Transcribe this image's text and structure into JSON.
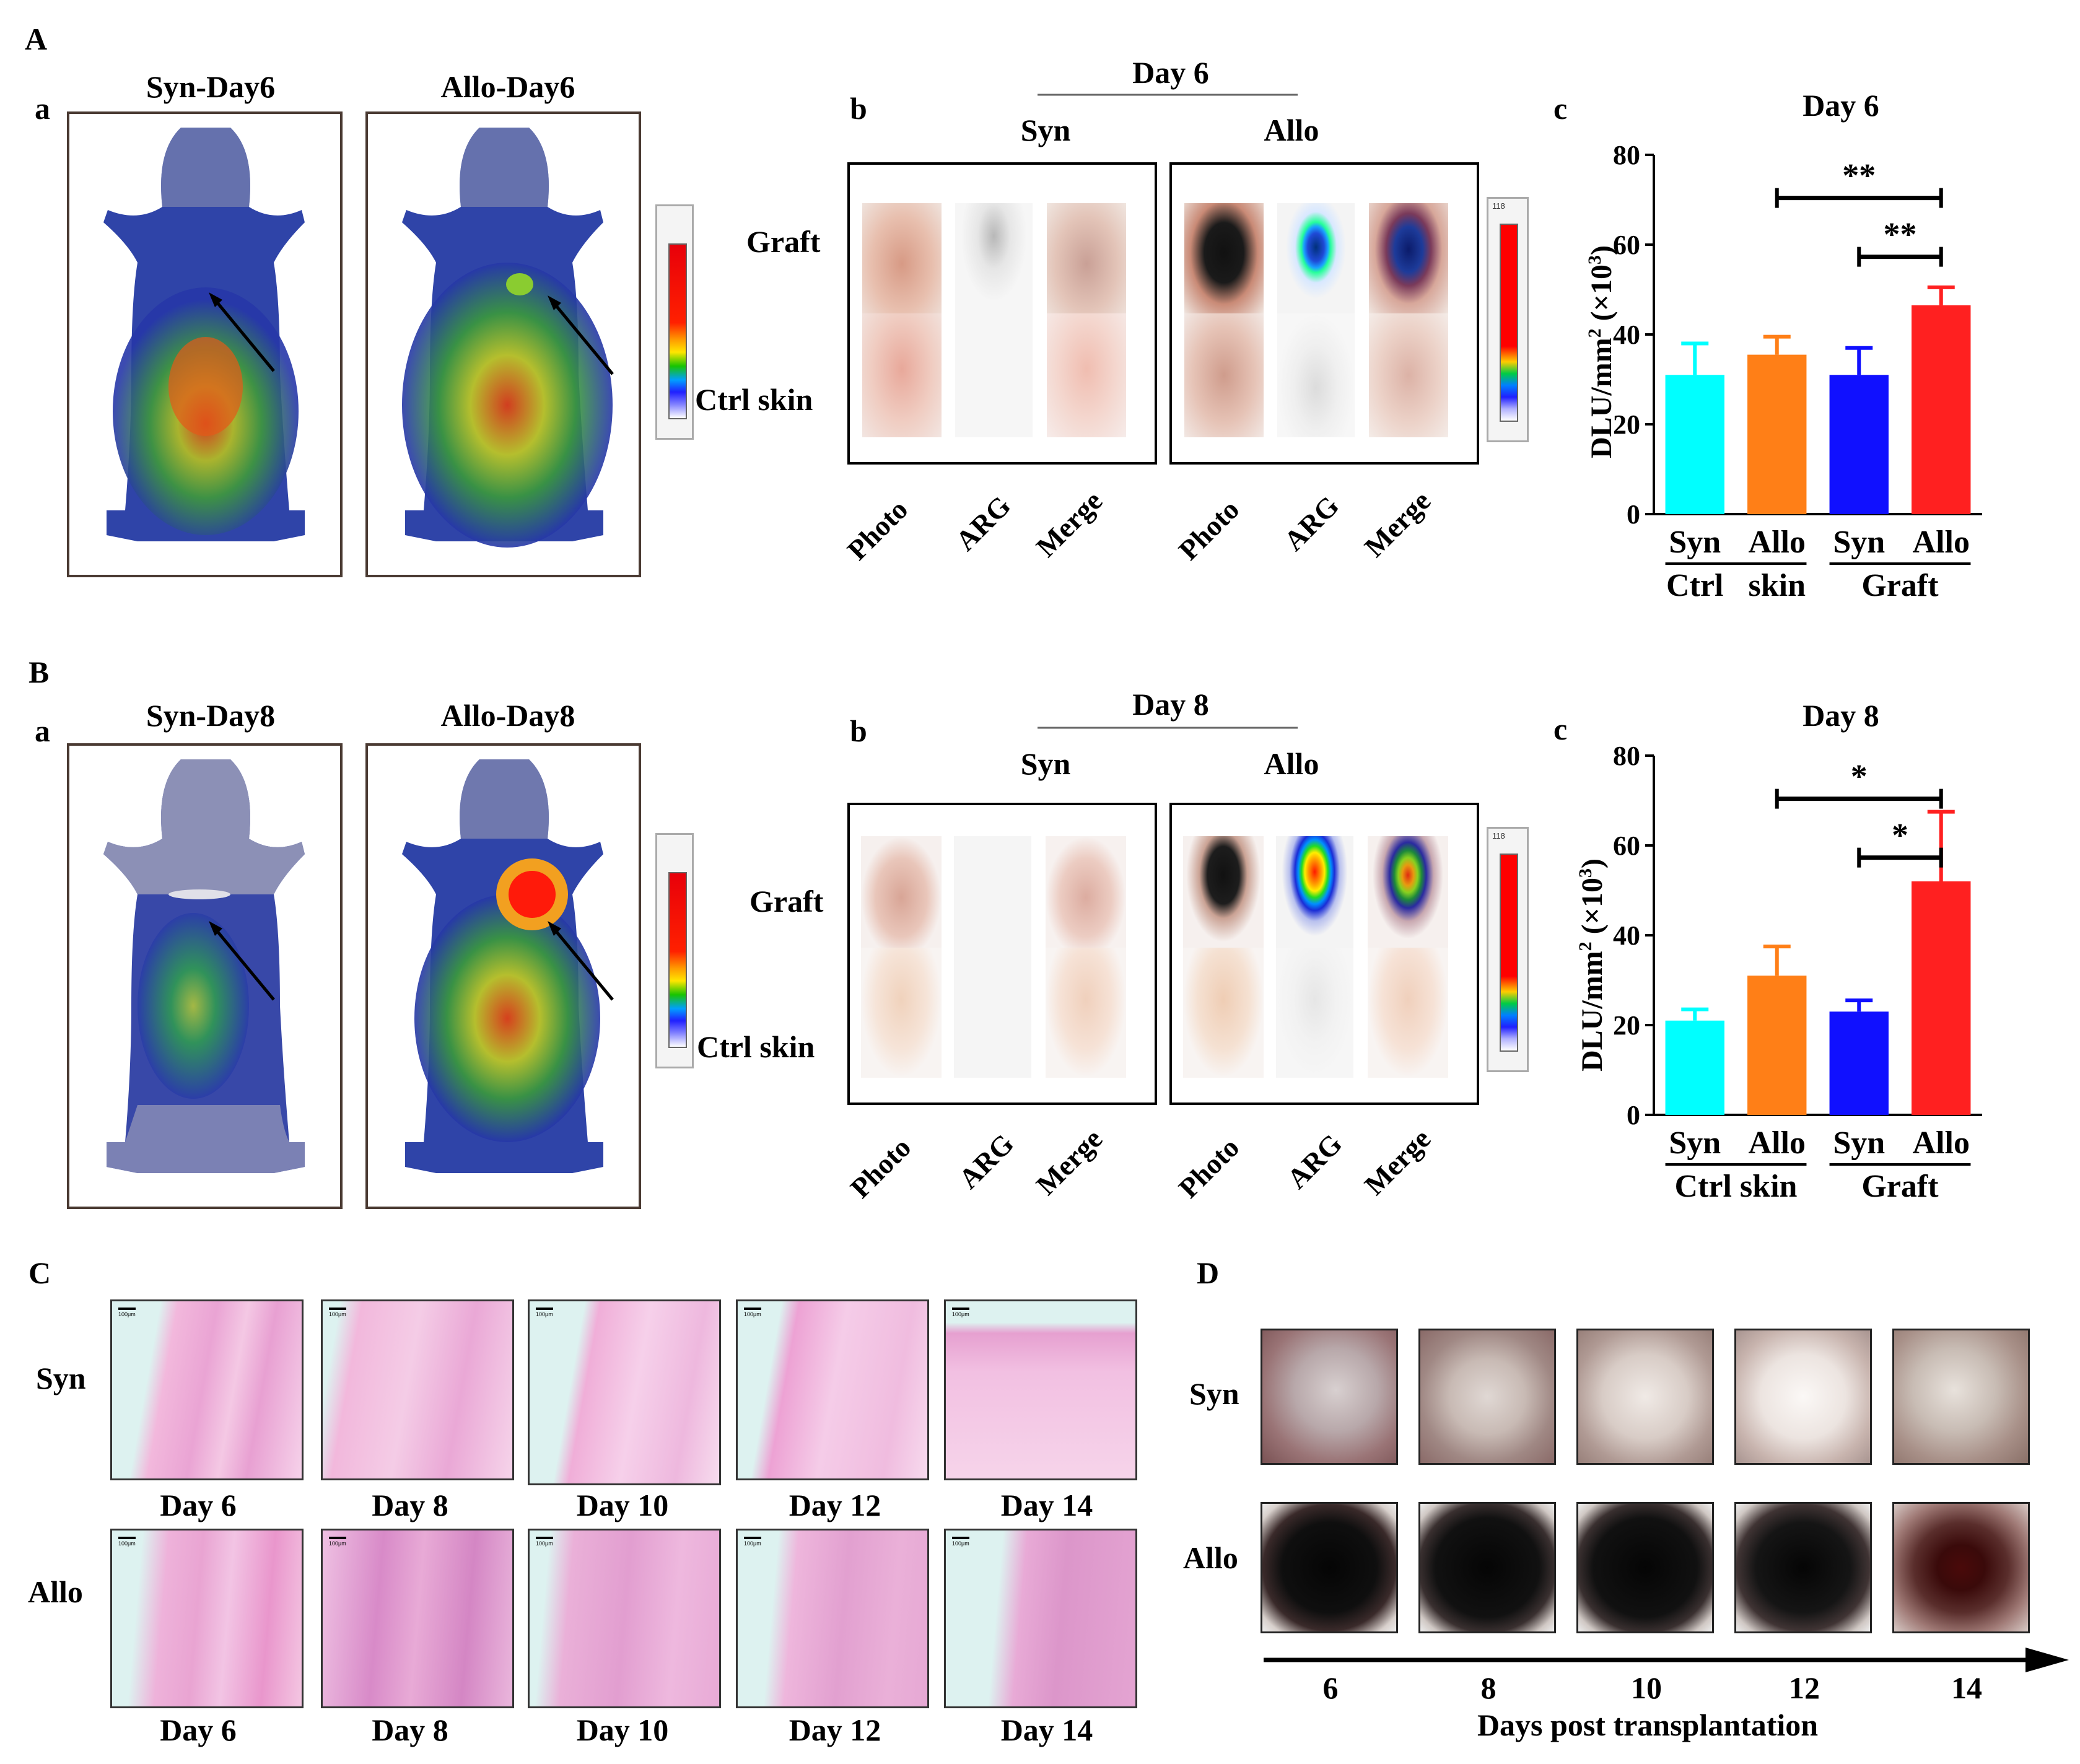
{
  "panel_letters": {
    "A": "A",
    "B": "B",
    "C": "C",
    "D": "D"
  },
  "sub_letters": {
    "a": "a",
    "b": "b",
    "c": "c"
  },
  "A": {
    "syn_title": "Syn-Day6",
    "allo_title": "Allo-Day6",
    "arg_day": "Day 6",
    "syn_label": "Syn",
    "allo_label": "Allo",
    "row_graft": "Graft",
    "row_ctrl": "Ctrl skin",
    "colorbar_max": "118"
  },
  "B": {
    "syn_title": "Syn-Day8",
    "allo_title": "Allo-Day8",
    "arg_day": "Day 8",
    "syn_label": "Syn",
    "allo_label": "Allo",
    "row_graft": "Graft",
    "row_ctrl": "Ctrl skin",
    "colorbar_max": "118"
  },
  "col_labels": [
    "Photo",
    "ARG",
    "Merge",
    "Photo",
    "ARG",
    "Merge"
  ],
  "chart_data": [
    {
      "type": "bar",
      "title": "Day 6",
      "ylabel": "DLU/mm² (×10³)",
      "ylabel_main": "DLU/mm",
      "ylabel_sup": "2",
      "ylabel_unit": "(×10",
      "ylabel_unit_sup": "3",
      "ylabel_close": ")",
      "ylim": [
        0,
        80
      ],
      "yticks": [
        "0",
        "20",
        "40",
        "60",
        "80"
      ],
      "categories": [
        "Syn",
        "Allo",
        "Syn",
        "Allo"
      ],
      "groups": [
        "Ctrl",
        "skin",
        "Graft"
      ],
      "values": [
        31,
        35.5,
        31,
        46.5
      ],
      "errors": [
        7,
        4,
        6,
        4
      ],
      "colors": [
        "#00ffff",
        "#ff7f17",
        "#1010ff",
        "#ff2020"
      ],
      "significance": [
        "**",
        "**"
      ]
    },
    {
      "type": "bar",
      "title": "Day 8",
      "ylabel": "DLU/mm² (×10³)",
      "ylabel_main": "DLU/mm",
      "ylabel_sup": "2",
      "ylabel_unit": "(×10",
      "ylabel_unit_sup": "3",
      "ylabel_close": ")",
      "ylim": [
        0,
        80
      ],
      "yticks": [
        "0",
        "20",
        "40",
        "60",
        "80"
      ],
      "categories": [
        "Syn",
        "Allo",
        "Syn",
        "Allo"
      ],
      "groups": [
        "Ctrl skin",
        "Graft"
      ],
      "values": [
        21,
        31,
        23,
        52
      ],
      "errors": [
        2.5,
        6.5,
        2.5,
        15.5
      ],
      "colors": [
        "#00ffff",
        "#ff7f17",
        "#1010ff",
        "#ff2020"
      ],
      "significance": [
        "*",
        "*"
      ]
    }
  ],
  "C": {
    "row_syn": "Syn",
    "row_allo": "Allo",
    "days": [
      "Day 6",
      "Day 8",
      "Day 10",
      "Day 12",
      "Day 14"
    ],
    "scale": "100μm"
  },
  "D": {
    "row_syn": "Syn",
    "row_allo": "Allo",
    "ticks": [
      "6",
      "8",
      "10",
      "12",
      "14"
    ],
    "axis_label": "Days post transplantation"
  }
}
